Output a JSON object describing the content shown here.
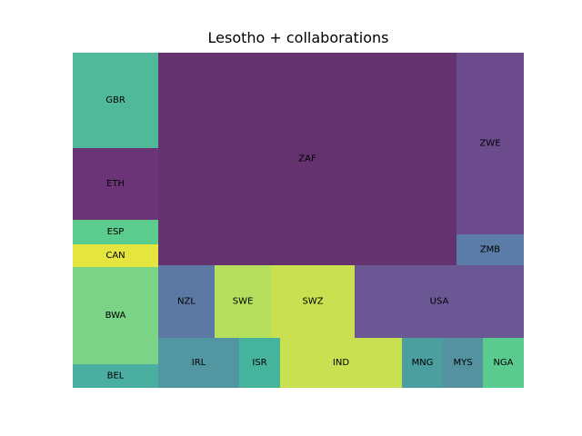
{
  "chart_data": {
    "type": "treemap",
    "title": "Lesotho + collaborations",
    "cells": [
      {
        "label": "GBR",
        "color": "#4fb99a"
      },
      {
        "label": "ETH",
        "color": "#6a3477"
      },
      {
        "label": "ESP",
        "color": "#5bcc8e"
      },
      {
        "label": "CAN",
        "color": "#e4e63f"
      },
      {
        "label": "BWA",
        "color": "#7bd385"
      },
      {
        "label": "BEL",
        "color": "#4aaea0"
      },
      {
        "label": "ZAF",
        "color": "#653270"
      },
      {
        "label": "ZWE",
        "color": "#6c4b8c"
      },
      {
        "label": "ZMB",
        "color": "#5b7ca6"
      },
      {
        "label": "NZL",
        "color": "#5b79a3"
      },
      {
        "label": "SWE",
        "color": "#b5df5c"
      },
      {
        "label": "SWZ",
        "color": "#c9e150"
      },
      {
        "label": "USA",
        "color": "#6c5795"
      },
      {
        "label": "IRL",
        "color": "#5296a1"
      },
      {
        "label": "ISR",
        "color": "#46b39c"
      },
      {
        "label": "IND",
        "color": "#c9e150"
      },
      {
        "label": "MNG",
        "color": "#4c9f9f"
      },
      {
        "label": "MYS",
        "color": "#54929f"
      },
      {
        "label": "NGA",
        "color": "#5acb8f"
      }
    ]
  }
}
